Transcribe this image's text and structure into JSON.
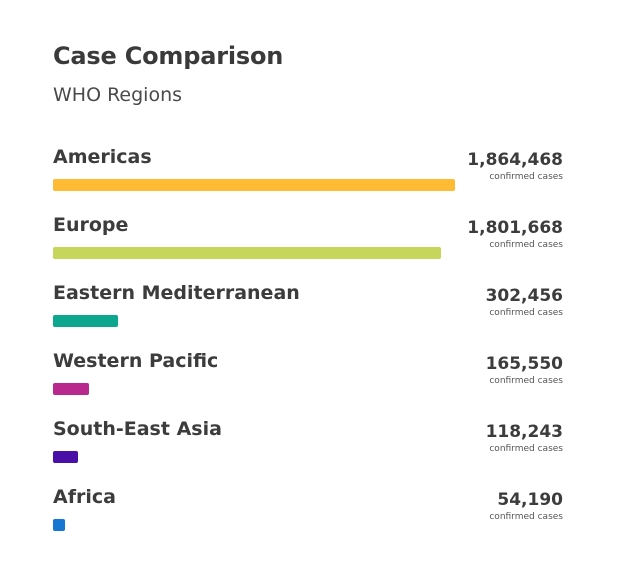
{
  "chart_data": {
    "type": "bar",
    "orientation": "horizontal",
    "title": "Case Comparison",
    "subtitle": "WHO Regions",
    "value_unit_label": "confirmed cases",
    "categories": [
      "Americas",
      "Europe",
      "Eastern Mediterranean",
      "Western Pacific",
      "South-East Asia",
      "Africa"
    ],
    "values": [
      1864468,
      1801668,
      302456,
      165550,
      118243,
      54190
    ],
    "display_values": [
      "1,864,468",
      "1,801,668",
      "302,456",
      "165,550",
      "118,243",
      "54,190"
    ],
    "colors": [
      "#ffbb33",
      "#c6d65b",
      "#0da78f",
      "#b8288d",
      "#4a0fa6",
      "#1677d2"
    ],
    "xlim": [
      0,
      1864468
    ],
    "grid": false,
    "legend": "none"
  }
}
